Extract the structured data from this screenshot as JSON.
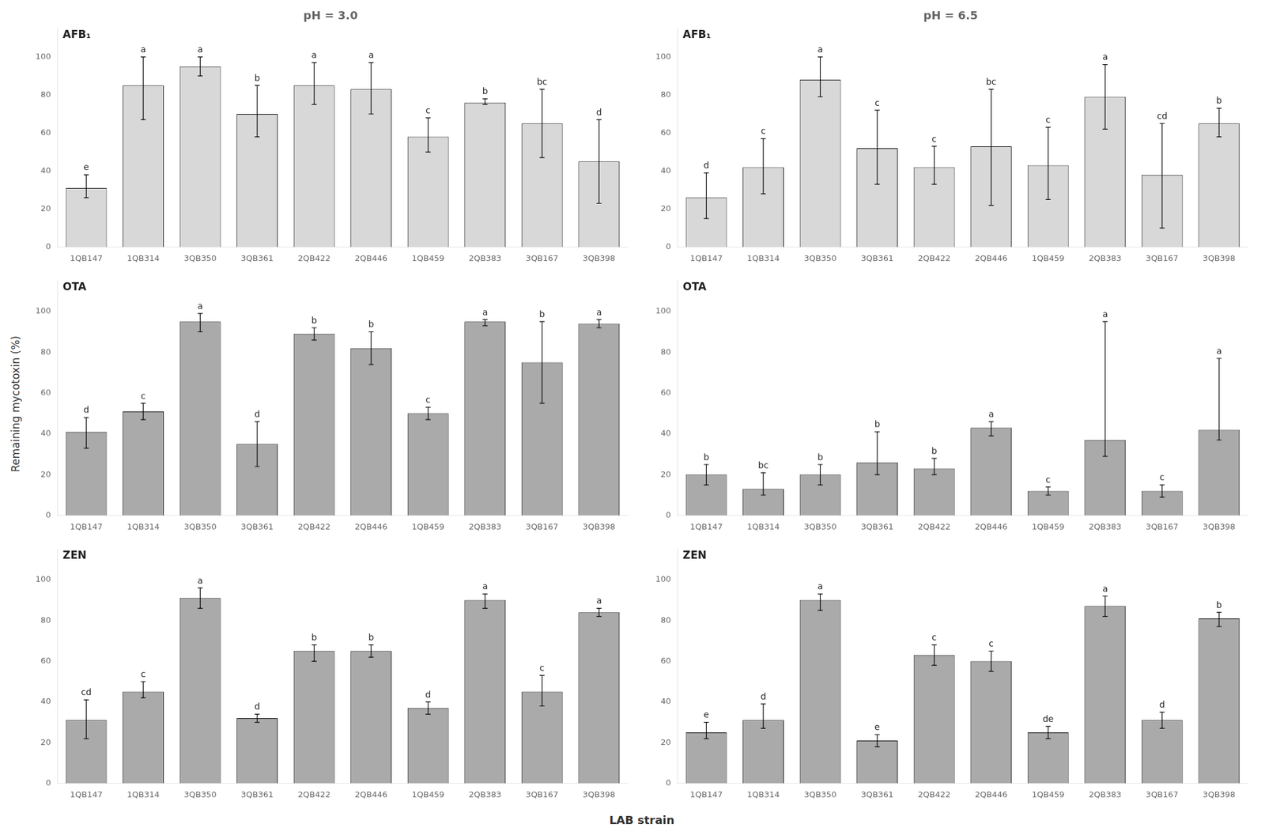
{
  "chart_data": [
    {
      "type": "bar",
      "title": "pH = 3.0",
      "annotation": "AFB₁",
      "categories": [
        "1QB147",
        "1QB314",
        "3QB350",
        "3QB361",
        "2QB422",
        "2QB446",
        "1QB459",
        "2QB383",
        "3QB167",
        "3QB398"
      ],
      "values": [
        31,
        85,
        95,
        70,
        85,
        83,
        58,
        76,
        65,
        45
      ],
      "err_low": [
        5,
        18,
        5,
        12,
        10,
        13,
        8,
        1,
        18,
        22
      ],
      "err_high": [
        7,
        15,
        5,
        15,
        12,
        14,
        10,
        2,
        18,
        22
      ],
      "letters": [
        "e",
        "a",
        "a",
        "b",
        "a",
        "a",
        "c",
        "b",
        "bc",
        "d"
      ],
      "color": "#d8d8d8",
      "ylim": [
        0,
        115
      ],
      "yticks": [
        0,
        20,
        40,
        60,
        80,
        100
      ],
      "grid": false
    },
    {
      "type": "bar",
      "title": "pH = 6.5",
      "annotation": "AFB₁",
      "categories": [
        "1QB147",
        "1QB314",
        "3QB350",
        "3QB361",
        "2QB422",
        "2QB446",
        "1QB459",
        "2QB383",
        "3QB167",
        "3QB398"
      ],
      "values": [
        26,
        42,
        88,
        52,
        42,
        53,
        43,
        79,
        38,
        65
      ],
      "err_low": [
        11,
        14,
        9,
        19,
        9,
        31,
        18,
        17,
        28,
        7
      ],
      "err_high": [
        13,
        15,
        12,
        20,
        11,
        30,
        20,
        17,
        27,
        8
      ],
      "letters": [
        "d",
        "c",
        "a",
        "c",
        "c",
        "bc",
        "c",
        "a",
        "cd",
        "b"
      ],
      "color": "#d8d8d8",
      "ylim": [
        0,
        115
      ],
      "yticks": [
        0,
        20,
        40,
        60,
        80,
        100
      ],
      "grid": false
    },
    {
      "type": "bar",
      "annotation": "OTA",
      "ylabel": "Remaining mycotoxin (%)",
      "categories": [
        "1QB147",
        "1QB314",
        "3QB350",
        "3QB361",
        "2QB422",
        "2QB446",
        "1QB459",
        "2QB383",
        "3QB167",
        "3QB398"
      ],
      "values": [
        41,
        51,
        95,
        35,
        89,
        82,
        50,
        95,
        75,
        94
      ],
      "err_low": [
        8,
        4,
        5,
        11,
        3,
        8,
        3,
        2,
        20,
        2
      ],
      "err_high": [
        7,
        4,
        4,
        11,
        3,
        8,
        3,
        1,
        20,
        2
      ],
      "letters": [
        "d",
        "c",
        "a",
        "d",
        "b",
        "b",
        "c",
        "a",
        "b",
        "a"
      ],
      "color": "#aaaaaa",
      "ylim": [
        0,
        115
      ],
      "yticks": [
        0,
        20,
        40,
        60,
        80,
        100
      ],
      "grid": false
    },
    {
      "type": "bar",
      "annotation": "OTA",
      "categories": [
        "1QB147",
        "1QB314",
        "3QB350",
        "3QB361",
        "2QB422",
        "2QB446",
        "1QB459",
        "2QB383",
        "3QB167",
        "3QB398"
      ],
      "values": [
        20,
        13,
        20,
        26,
        23,
        43,
        12,
        37,
        12,
        42
      ],
      "err_low": [
        5,
        3,
        5,
        6,
        3,
        4,
        2,
        8,
        3,
        5
      ],
      "err_high": [
        5,
        8,
        5,
        15,
        5,
        3,
        2,
        58,
        3,
        35
      ],
      "letters": [
        "b",
        "bc",
        "b",
        "b",
        "b",
        "a",
        "c",
        "a",
        "c",
        "a"
      ],
      "color": "#aaaaaa",
      "ylim": [
        0,
        115
      ],
      "yticks": [
        0,
        20,
        40,
        60,
        80,
        100
      ],
      "grid": false
    },
    {
      "type": "bar",
      "annotation": "ZEN",
      "xlabel": "LAB strain",
      "categories": [
        "1QB147",
        "1QB314",
        "3QB350",
        "3QB361",
        "2QB422",
        "2QB446",
        "1QB459",
        "2QB383",
        "3QB167",
        "3QB398"
      ],
      "values": [
        31,
        45,
        91,
        32,
        65,
        65,
        37,
        90,
        45,
        84
      ],
      "err_low": [
        9,
        3,
        5,
        2,
        5,
        3,
        3,
        4,
        7,
        2
      ],
      "err_high": [
        10,
        5,
        5,
        2,
        3,
        3,
        3,
        3,
        8,
        2
      ],
      "letters": [
        "cd",
        "c",
        "a",
        "d",
        "b",
        "b",
        "d",
        "a",
        "c",
        "a"
      ],
      "color": "#aaaaaa",
      "ylim": [
        0,
        115
      ],
      "yticks": [
        0,
        20,
        40,
        60,
        80,
        100
      ],
      "grid": false
    },
    {
      "type": "bar",
      "annotation": "ZEN",
      "categories": [
        "1QB147",
        "1QB314",
        "3QB350",
        "3QB361",
        "2QB422",
        "2QB446",
        "1QB459",
        "2QB383",
        "3QB167",
        "3QB398"
      ],
      "values": [
        25,
        31,
        90,
        21,
        63,
        60,
        25,
        87,
        31,
        81
      ],
      "err_low": [
        3,
        4,
        5,
        3,
        5,
        5,
        3,
        5,
        4,
        4
      ],
      "err_high": [
        5,
        8,
        3,
        3,
        5,
        5,
        3,
        5,
        4,
        3
      ],
      "letters": [
        "e",
        "d",
        "a",
        "e",
        "c",
        "c",
        "de",
        "a",
        "d",
        "b"
      ],
      "color": "#aaaaaa",
      "ylim": [
        0,
        115
      ],
      "yticks": [
        0,
        20,
        40,
        60,
        80,
        100
      ],
      "grid": false
    }
  ]
}
